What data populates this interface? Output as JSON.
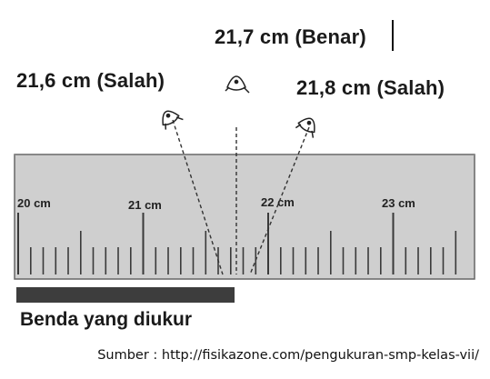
{
  "readings": {
    "correct": "21,7 cm (Benar)",
    "wrong_left": "21,6 cm (Salah)",
    "wrong_right": "21,8 cm (Salah)"
  },
  "ruler": {
    "tick_labels": [
      "20 cm",
      "21 cm",
      "22 cm",
      "23 cm"
    ],
    "colors": {
      "body": "#cfcfcf",
      "border": "#666666",
      "ticks": "#3a3a3a"
    }
  },
  "object_label": "Benda yang diukur",
  "source_text": "Sumber : http://fisikazone.com/pengukuran-smp-kelas-vii/",
  "colors": {
    "object_bar": "#3d3d3d",
    "text": "#1a1a1a"
  }
}
